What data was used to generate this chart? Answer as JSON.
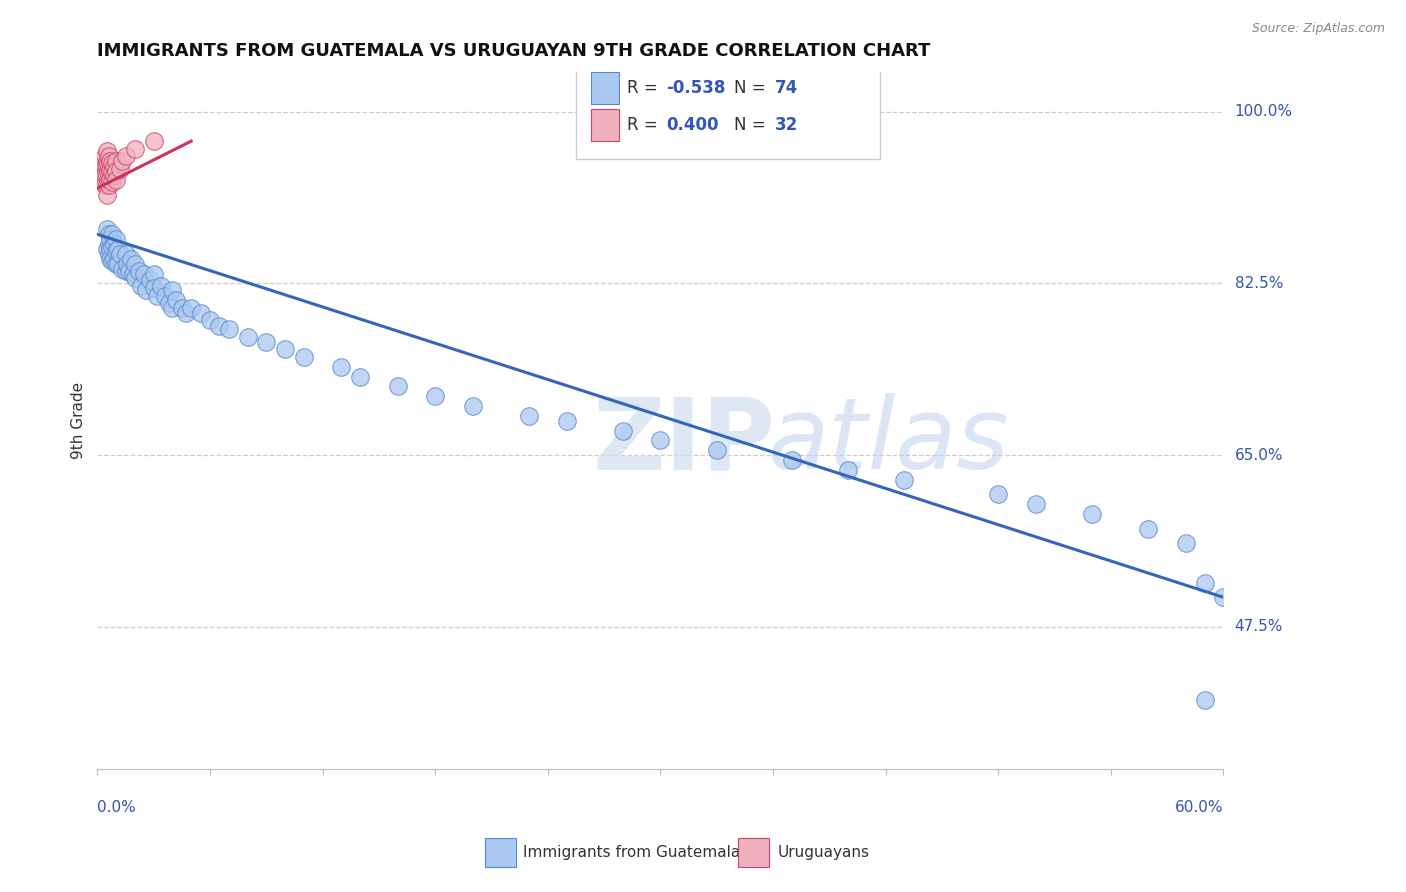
{
  "title": "IMMIGRANTS FROM GUATEMALA VS URUGUAYAN 9TH GRADE CORRELATION CHART",
  "source_text": "Source: ZipAtlas.com",
  "ylabel": "9th Grade",
  "ytick_labels": [
    "100.0%",
    "82.5%",
    "65.0%",
    "47.5%"
  ],
  "ytick_values": [
    1.0,
    0.825,
    0.65,
    0.475
  ],
  "xmin": 0.0,
  "xmax": 0.6,
  "ymin": 0.33,
  "ymax": 1.04,
  "blue_R": -0.538,
  "blue_N": 74,
  "pink_R": 0.4,
  "pink_N": 32,
  "blue_color": "#aac8f0",
  "blue_edge_color": "#5588cc",
  "pink_color": "#f0b0c0",
  "pink_edge_color": "#d04060",
  "blue_line_color": "#3366bb",
  "pink_line_color": "#cc3355",
  "legend_label_blue": "Immigrants from Guatemala",
  "legend_label_pink": "Uruguayans",
  "blue_scatter_x": [
    0.005,
    0.005,
    0.006,
    0.006,
    0.006,
    0.007,
    0.007,
    0.007,
    0.008,
    0.008,
    0.008,
    0.009,
    0.009,
    0.01,
    0.01,
    0.01,
    0.011,
    0.011,
    0.012,
    0.013,
    0.015,
    0.015,
    0.016,
    0.017,
    0.018,
    0.019,
    0.02,
    0.02,
    0.022,
    0.023,
    0.025,
    0.026,
    0.028,
    0.03,
    0.03,
    0.032,
    0.034,
    0.036,
    0.038,
    0.04,
    0.04,
    0.042,
    0.045,
    0.047,
    0.05,
    0.055,
    0.06,
    0.065,
    0.07,
    0.08,
    0.09,
    0.1,
    0.11,
    0.13,
    0.14,
    0.16,
    0.18,
    0.2,
    0.23,
    0.25,
    0.28,
    0.3,
    0.33,
    0.37,
    0.4,
    0.43,
    0.48,
    0.5,
    0.53,
    0.56,
    0.58,
    0.59,
    0.59,
    0.6
  ],
  "blue_scatter_y": [
    0.88,
    0.86,
    0.875,
    0.865,
    0.855,
    0.87,
    0.86,
    0.85,
    0.875,
    0.862,
    0.848,
    0.865,
    0.85,
    0.87,
    0.858,
    0.845,
    0.86,
    0.845,
    0.855,
    0.84,
    0.855,
    0.838,
    0.845,
    0.838,
    0.85,
    0.835,
    0.845,
    0.83,
    0.838,
    0.822,
    0.835,
    0.818,
    0.828,
    0.835,
    0.82,
    0.812,
    0.822,
    0.812,
    0.805,
    0.818,
    0.8,
    0.808,
    0.8,
    0.795,
    0.8,
    0.795,
    0.788,
    0.782,
    0.778,
    0.77,
    0.765,
    0.758,
    0.75,
    0.74,
    0.73,
    0.72,
    0.71,
    0.7,
    0.69,
    0.685,
    0.675,
    0.665,
    0.655,
    0.645,
    0.635,
    0.625,
    0.61,
    0.6,
    0.59,
    0.575,
    0.56,
    0.52,
    0.4,
    0.505
  ],
  "pink_scatter_x": [
    0.003,
    0.003,
    0.004,
    0.004,
    0.004,
    0.004,
    0.005,
    0.005,
    0.005,
    0.005,
    0.005,
    0.005,
    0.006,
    0.006,
    0.006,
    0.006,
    0.007,
    0.007,
    0.007,
    0.008,
    0.008,
    0.008,
    0.009,
    0.009,
    0.01,
    0.01,
    0.01,
    0.012,
    0.013,
    0.015,
    0.02,
    0.03
  ],
  "pink_scatter_y": [
    0.94,
    0.93,
    0.955,
    0.945,
    0.935,
    0.925,
    0.96,
    0.95,
    0.945,
    0.935,
    0.925,
    0.915,
    0.955,
    0.945,
    0.935,
    0.925,
    0.95,
    0.94,
    0.93,
    0.948,
    0.938,
    0.928,
    0.945,
    0.935,
    0.95,
    0.94,
    0.93,
    0.942,
    0.95,
    0.955,
    0.962,
    0.97
  ],
  "blue_trendline_x": [
    0.0,
    0.6
  ],
  "blue_trendline_y": [
    0.875,
    0.505
  ],
  "pink_trendline_x": [
    0.0,
    0.05
  ],
  "pink_trendline_y": [
    0.922,
    0.97
  ]
}
